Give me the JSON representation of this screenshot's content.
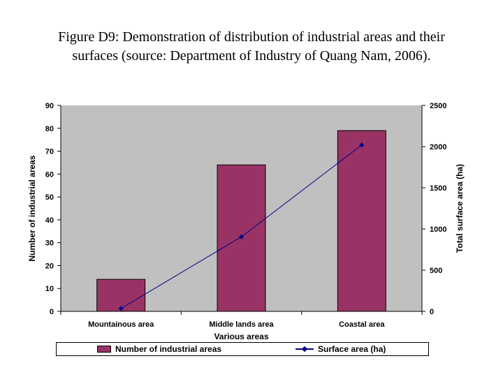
{
  "title_line1": "Figure D9: Demonstration of distribution of industrial areas and their",
  "title_line2": "surfaces (source: Department of Industry of Quang Nam, 2006).",
  "chart_data": {
    "type": "bar",
    "categories": [
      "Mountainous area",
      "Middle lands area",
      "Coastal area"
    ],
    "xlabel": "Various areas",
    "ylabel": "Number of industrial areas",
    "y2label": "Total surface area (ha)",
    "ylim": [
      0,
      90
    ],
    "yticks": [
      0,
      10,
      20,
      30,
      40,
      50,
      60,
      70,
      80,
      90
    ],
    "y2lim": [
      0,
      2500
    ],
    "y2ticks": [
      0,
      500,
      1000,
      1500,
      2000,
      2500
    ],
    "grid": false,
    "legend_position": "bottom",
    "series": [
      {
        "name": "Number of industrial areas",
        "type": "bar",
        "axis": "left",
        "values": [
          14,
          64,
          79
        ]
      },
      {
        "name": "Surface area (ha)",
        "type": "line",
        "axis": "right",
        "values": [
          35,
          905,
          2020
        ]
      }
    ]
  },
  "colors": {
    "plot_background": "#c0c0c0",
    "bar": "#993366",
    "line": "#00008b"
  }
}
